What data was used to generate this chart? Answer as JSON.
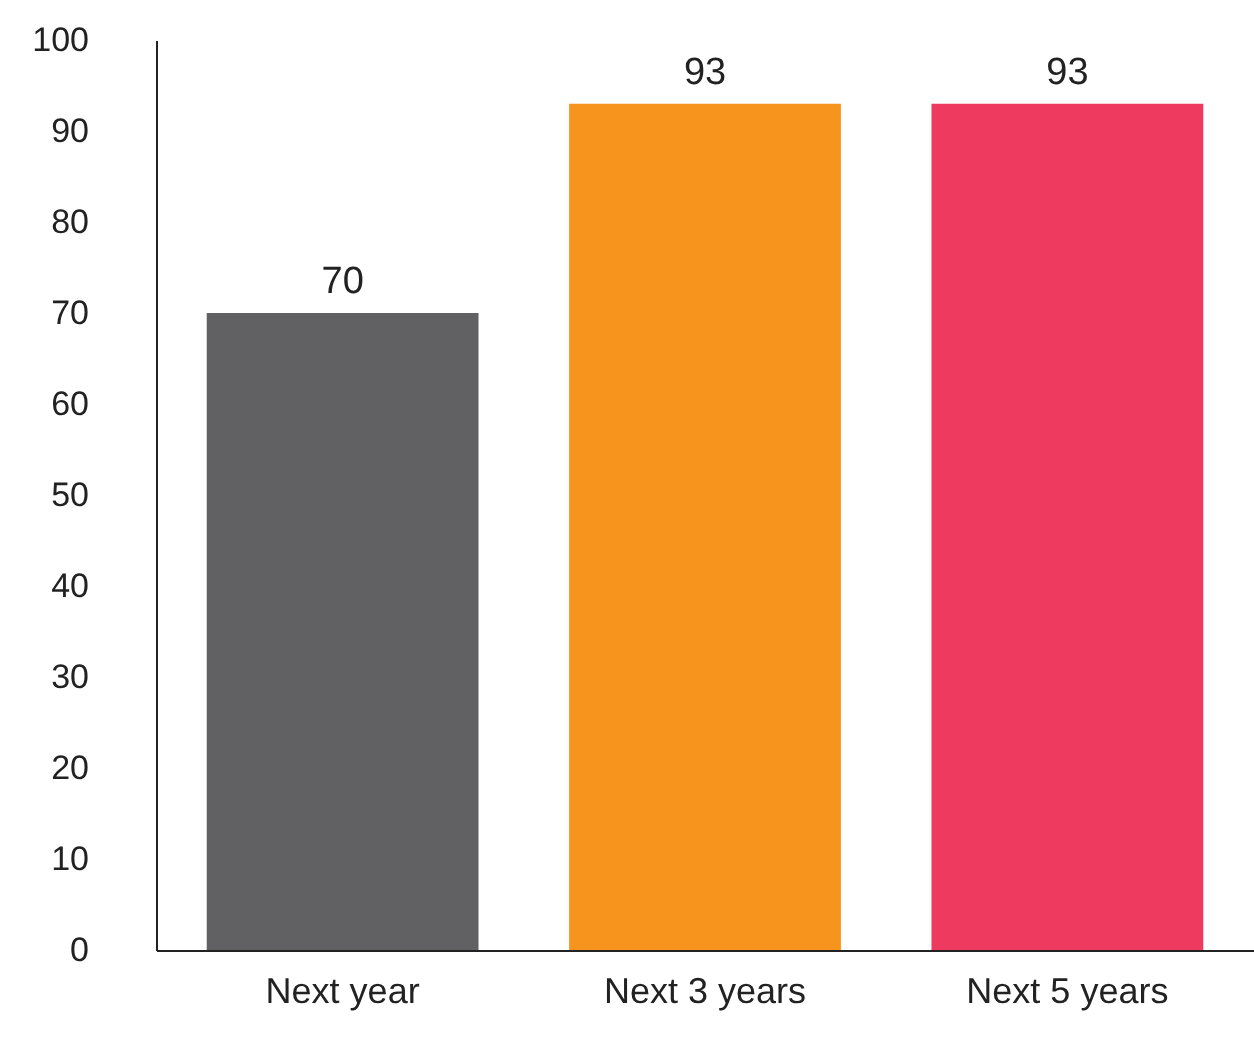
{
  "chart_data": {
    "type": "bar",
    "categories": [
      "Next year",
      "Next 3 years",
      "Next 5 years"
    ],
    "values": [
      70,
      93,
      93
    ],
    "colors": [
      "#616163",
      "#f7941d",
      "#ee3a5f"
    ],
    "ylim": [
      0,
      100
    ],
    "yticks": [
      0,
      10,
      20,
      30,
      40,
      50,
      60,
      70,
      80,
      90,
      100
    ],
    "grid": false,
    "data_labels": true
  }
}
